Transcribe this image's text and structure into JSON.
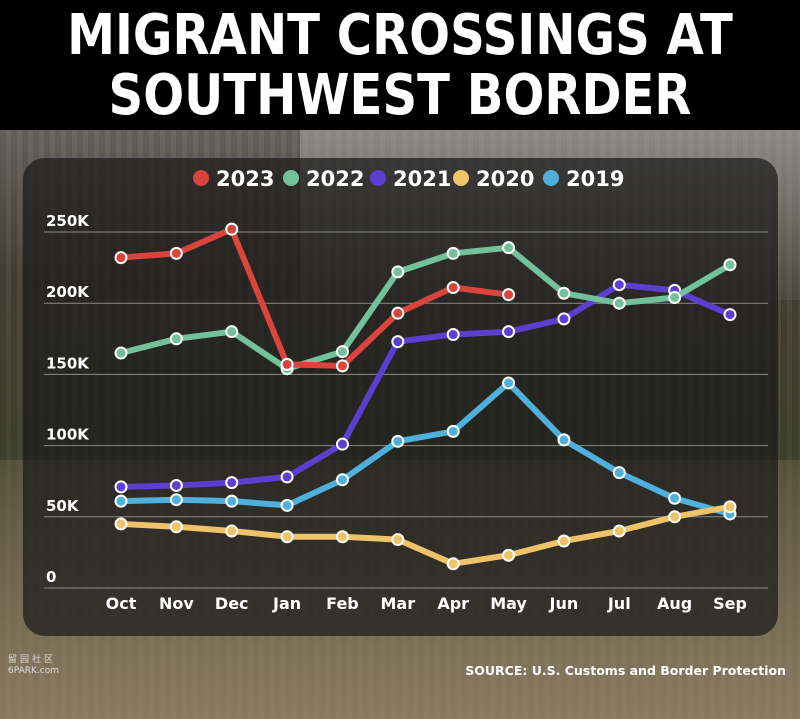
{
  "headline": {
    "line1": "MIGRANT CROSSINGS AT",
    "line2": "SOUTHWEST BORDER"
  },
  "source": "SOURCE: U.S. Customs and Border Protection",
  "watermark": {
    "glyphs": "留园社区",
    "site": "6PARK.com"
  },
  "chart_data": {
    "type": "line",
    "title": "MIGRANT CROSSINGS AT SOUTHWEST BORDER",
    "xlabel": "",
    "ylabel": "",
    "categories": [
      "Oct",
      "Nov",
      "Dec",
      "Jan",
      "Feb",
      "Mar",
      "Apr",
      "May",
      "Jun",
      "Jul",
      "Aug",
      "Sep"
    ],
    "ylim": [
      0,
      250000
    ],
    "yticks": [
      0,
      50000,
      100000,
      150000,
      200000,
      250000
    ],
    "ytick_labels": [
      "0",
      "50K",
      "100K",
      "150K",
      "200K",
      "250K"
    ],
    "grid": true,
    "legend_position": "top",
    "series": [
      {
        "name": "2023",
        "color": "#d9443c",
        "values": [
          232000,
          235000,
          252000,
          157000,
          156000,
          193000,
          211000,
          206000,
          null,
          null,
          null,
          null
        ]
      },
      {
        "name": "2022",
        "color": "#72c19b",
        "values": [
          165000,
          175000,
          180000,
          154000,
          166000,
          222000,
          235000,
          239000,
          207000,
          200000,
          204000,
          227000
        ]
      },
      {
        "name": "2021",
        "color": "#5a3fd1",
        "values": [
          71000,
          72000,
          74000,
          78000,
          101000,
          173000,
          178000,
          180000,
          189000,
          213000,
          209000,
          192000
        ]
      },
      {
        "name": "2020",
        "color": "#eec36a",
        "values": [
          45000,
          43000,
          40000,
          36000,
          36000,
          34000,
          17000,
          23000,
          33000,
          40000,
          50000,
          57000
        ]
      },
      {
        "name": "2019",
        "color": "#4fb0db",
        "values": [
          61000,
          62000,
          61000,
          58000,
          76000,
          103000,
          110000,
          144000,
          104000,
          81000,
          63000,
          52000
        ]
      }
    ]
  }
}
